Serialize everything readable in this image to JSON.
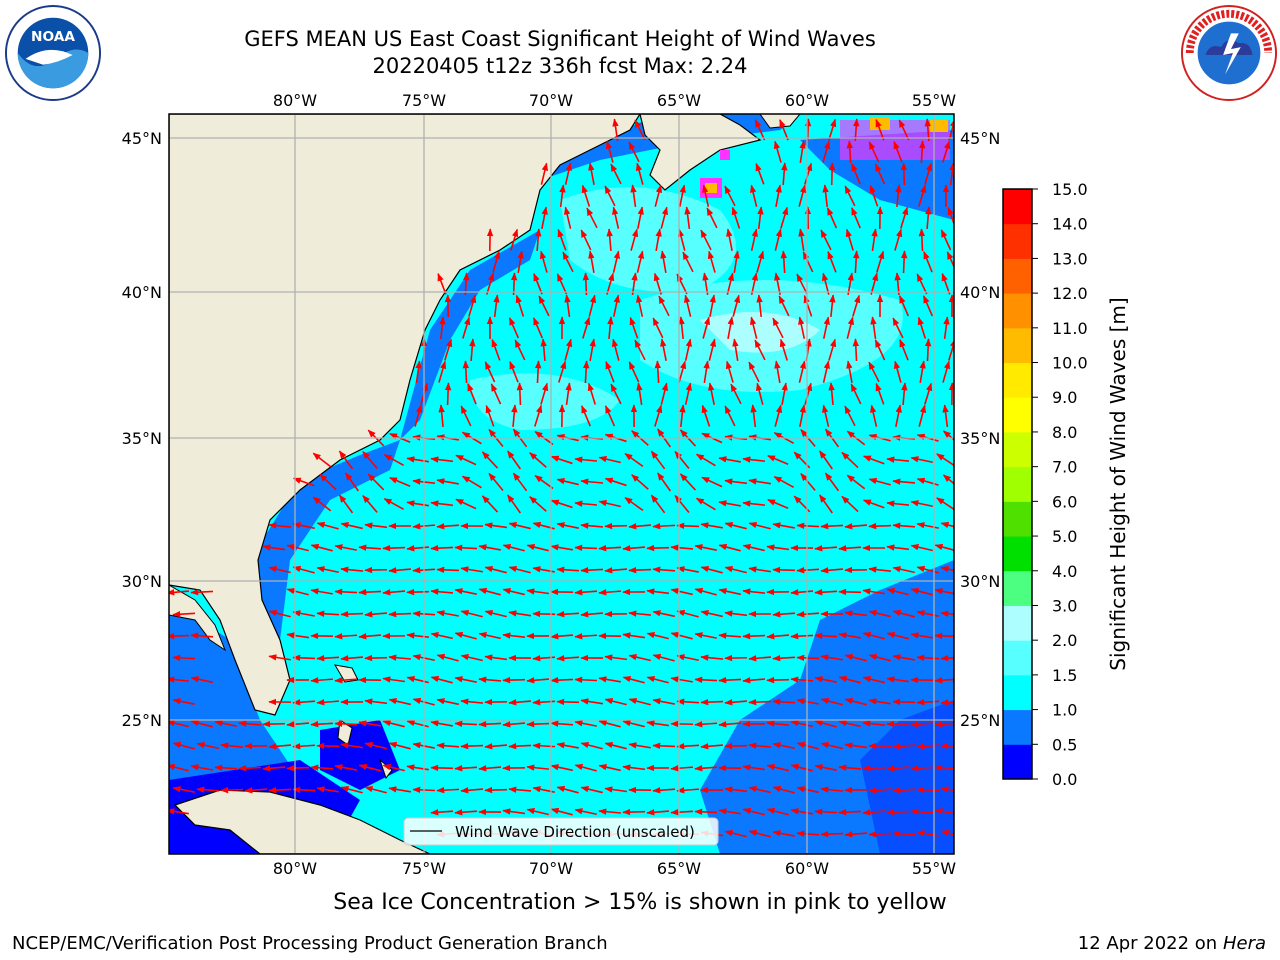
{
  "title_line1": "GEFS MEAN US East Coast Significant Height of Wind Waves",
  "title_line2": "20220405 t12z 336h fcst   Max: 2.24",
  "lon_ticks": [
    "80°W",
    "75°W",
    "70°W",
    "65°W",
    "60°W",
    "55°W"
  ],
  "lat_ticks": [
    "45°N",
    "40°N",
    "35°N",
    "30°N",
    "25°N"
  ],
  "legend_label": "Wind Wave Direction (unscaled)",
  "colorbar": {
    "label": "Significant Height of Wind Waves [m]",
    "ticks": [
      "0.0",
      "0.5",
      "1.0",
      "1.5",
      "2.0",
      "3.0",
      "4.0",
      "5.0",
      "6.0",
      "7.0",
      "8.0",
      "9.0",
      "10.0",
      "11.0",
      "12.0",
      "13.0",
      "14.0",
      "15.0"
    ],
    "colors": [
      "#0000ff",
      "#0a78ff",
      "#00ffff",
      "#58ffff",
      "#adffff",
      "#4cff80",
      "#00e000",
      "#50e000",
      "#a0ff00",
      "#ccff00",
      "#ffff00",
      "#ffea00",
      "#ffbb00",
      "#ff9000",
      "#ff6000",
      "#ff3000",
      "#ff0000"
    ]
  },
  "colors": {
    "land": "#efedda",
    "ocean_low": "#0000ff",
    "ocean_mid": "#0a78ff",
    "ocean_main": "#00ffff",
    "ocean_high": "#58ffff",
    "ocean_peak": "#adffff",
    "arrow": "#ff0000",
    "grid": "#b0b0b0",
    "ice": "#ff33ff"
  },
  "footer": {
    "sea_ice_note": "Sea Ice Concentration > 15% is shown in pink to yellow",
    "credit": "NCEP/EMC/Verification Post Processing Product Generation Branch",
    "date": "12 Apr 2022 on ",
    "machine": "Hera"
  },
  "logos": {
    "left": "noaa-logo",
    "right": "nws-logo"
  }
}
